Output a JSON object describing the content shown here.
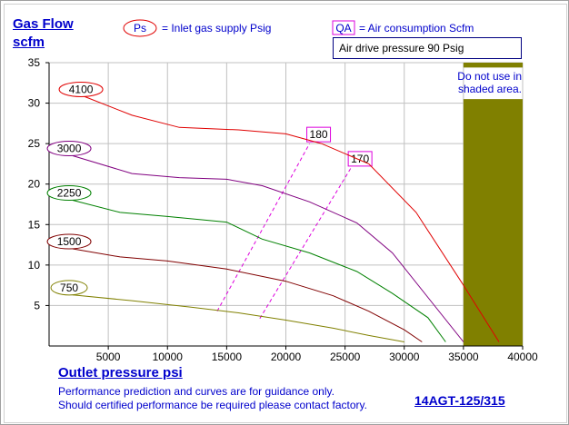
{
  "chart_data": {
    "type": "line",
    "ylabel_line1": "Gas Flow",
    "ylabel_line2": "scfm",
    "xlabel": "Outlet pressure   psi",
    "xlim": [
      0,
      40000
    ],
    "ylim": [
      0,
      35
    ],
    "x_ticks": [
      5000,
      10000,
      15000,
      20000,
      25000,
      30000,
      35000,
      40000
    ],
    "y_ticks": [
      5,
      10,
      15,
      20,
      25,
      30,
      35
    ],
    "grid": true,
    "legend": {
      "ps_marker": "Ps",
      "ps_text": "= Inlet gas supply  Psig",
      "qa_marker": "QA",
      "qa_text": "= Air consumption  Scfm",
      "air_drive": "Air drive pressure  90 Psig"
    },
    "shaded_region": {
      "x_start": 35000,
      "x_end": 40000,
      "label_line1": "Do not use in",
      "label_line2": "shaded area."
    },
    "series": [
      {
        "name": "4100",
        "color": "#e00000",
        "points": [
          [
            3000,
            30.8
          ],
          [
            7000,
            28.5
          ],
          [
            11000,
            27.0
          ],
          [
            16000,
            26.7
          ],
          [
            20000,
            26.2
          ],
          [
            23000,
            25.0
          ],
          [
            27000,
            22.5
          ],
          [
            31000,
            16.5
          ],
          [
            35000,
            7.5
          ],
          [
            38000,
            0.5
          ]
        ]
      },
      {
        "name": "3000",
        "color": "#800080",
        "points": [
          [
            2000,
            23.5
          ],
          [
            7000,
            21.3
          ],
          [
            11000,
            20.8
          ],
          [
            15000,
            20.6
          ],
          [
            18000,
            19.8
          ],
          [
            22000,
            17.8
          ],
          [
            26000,
            15.2
          ],
          [
            29000,
            11.5
          ],
          [
            32000,
            6.0
          ],
          [
            35000,
            0.5
          ]
        ]
      },
      {
        "name": "2250",
        "color": "#008000",
        "points": [
          [
            2000,
            18.0
          ],
          [
            6000,
            16.5
          ],
          [
            10000,
            16.0
          ],
          [
            15000,
            15.3
          ],
          [
            18000,
            13.2
          ],
          [
            22000,
            11.5
          ],
          [
            26000,
            9.2
          ],
          [
            29000,
            6.5
          ],
          [
            32000,
            3.5
          ],
          [
            33500,
            0.5
          ]
        ]
      },
      {
        "name": "1500",
        "color": "#800000",
        "points": [
          [
            2000,
            12.0
          ],
          [
            6000,
            11.0
          ],
          [
            10000,
            10.5
          ],
          [
            15000,
            9.5
          ],
          [
            20000,
            8.0
          ],
          [
            24000,
            6.2
          ],
          [
            27000,
            4.3
          ],
          [
            30000,
            2.0
          ],
          [
            31500,
            0.5
          ]
        ]
      },
      {
        "name": "750",
        "color": "#808000",
        "points": [
          [
            2000,
            6.3
          ],
          [
            7000,
            5.6
          ],
          [
            12000,
            4.8
          ],
          [
            16000,
            4.1
          ],
          [
            20000,
            3.2
          ],
          [
            24000,
            2.2
          ],
          [
            27000,
            1.3
          ],
          [
            30000,
            0.5
          ]
        ]
      }
    ],
    "air_consumption_lines": [
      {
        "label": "180",
        "color": "#dd00dd",
        "points": [
          [
            14200,
            4.3
          ],
          [
            22000,
            25.0
          ]
        ]
      },
      {
        "label": "170",
        "color": "#dd00dd",
        "points": [
          [
            17800,
            3.4
          ],
          [
            25500,
            22.0
          ]
        ]
      }
    ],
    "annotations": {
      "disclaimer_line1": "Performance prediction and curves are for guidance only.",
      "disclaimer_line2": "Should certified performance be required please contact factory.",
      "model": "14AGT-125/315"
    }
  }
}
